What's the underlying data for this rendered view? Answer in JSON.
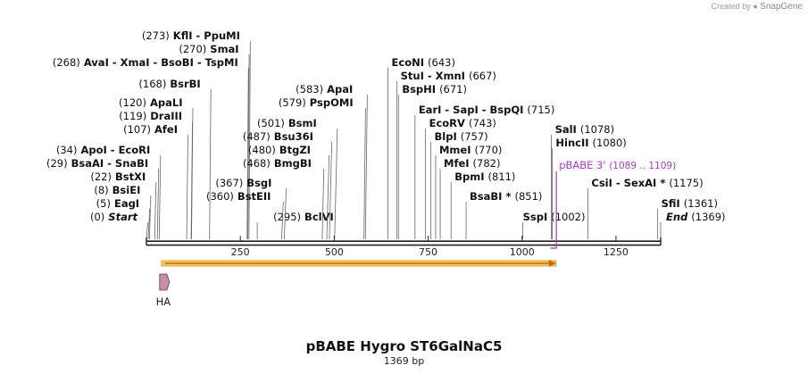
{
  "app": {
    "watermark_prefix": "Created by",
    "watermark_brand": "SnapGene"
  },
  "map": {
    "title": "pBABE Hygro ST6GalNaC5",
    "length_label": "1369 bp",
    "length": 1369
  },
  "colors": {
    "axis": "#222222",
    "orf_fill": "#f6c667",
    "orf_stroke": "#e59a1a",
    "orf_arrow": "#c96e05",
    "feature_fill": "#c48fa9",
    "primer": "#a93cc9",
    "leader": "#666666"
  },
  "ticks": [
    {
      "pos": 250,
      "label": "250"
    },
    {
      "pos": 500,
      "label": "500"
    },
    {
      "pos": 750,
      "label": "750"
    },
    {
      "pos": 1000,
      "label": "1000"
    },
    {
      "pos": 1250,
      "label": "1250"
    }
  ],
  "sites": [
    {
      "pos": 273,
      "text": "(273)  KflI  - PpuMI"
    },
    {
      "pos": 270,
      "text": "(270)  SmaI"
    },
    {
      "pos": 268,
      "text": "(268)  AvaI  - XmaI  - BsoBI  - TspMI"
    },
    {
      "pos": 168,
      "text": "(168)  BsrBI"
    },
    {
      "pos": 120,
      "text": "(120)  ApaLI"
    },
    {
      "pos": 119,
      "text": "(119)  DraIII"
    },
    {
      "pos": 107,
      "text": "(107)  AfeI"
    },
    {
      "pos": 34,
      "text": "(34)  ApoI  - EcoRI"
    },
    {
      "pos": 29,
      "text": "(29)  BsaAI  - SnaBI"
    },
    {
      "pos": 22,
      "text": "(22)  BstXI"
    },
    {
      "pos": 8,
      "text": "(8)  BsiEI"
    },
    {
      "pos": 5,
      "text": "(5)  EagI"
    },
    {
      "pos": 0,
      "text": "(0)  Start"
    },
    {
      "pos": 295,
      "text": "(295)  BclVI"
    },
    {
      "pos": 360,
      "text": "(360)  BstEII"
    },
    {
      "pos": 367,
      "text": "(367)  BsgI"
    },
    {
      "pos": 468,
      "text": "(468)  BmgBI"
    },
    {
      "pos": 480,
      "text": "(480)  BtgZI"
    },
    {
      "pos": 487,
      "text": "(487)  Bsu36I"
    },
    {
      "pos": 501,
      "text": "(501)  BsmI"
    },
    {
      "pos": 579,
      "text": "(579)  PspOMI"
    },
    {
      "pos": 583,
      "text": "(583)  ApaI"
    },
    {
      "pos": 643,
      "text": "EcoNI  (643)"
    },
    {
      "pos": 667,
      "text": "StuI  - XmnI  (667)"
    },
    {
      "pos": 671,
      "text": "BspHI  (671)"
    },
    {
      "pos": 715,
      "text": "EarI  - SapI  - BspQI  (715)"
    },
    {
      "pos": 743,
      "text": "EcoRV  (743)"
    },
    {
      "pos": 757,
      "text": "BlpI  (757)"
    },
    {
      "pos": 770,
      "text": "MmeI  (770)"
    },
    {
      "pos": 782,
      "text": "MfeI  (782)"
    },
    {
      "pos": 811,
      "text": "BpmI  (811)"
    },
    {
      "pos": 851,
      "text": "BsaBI *  (851)"
    },
    {
      "pos": 1002,
      "text": "SspI  (1002)"
    },
    {
      "pos": 1078,
      "text": "SalI  (1078)"
    },
    {
      "pos": 1080,
      "text": "HincII  (1080)"
    },
    {
      "pos": 1175,
      "text": "CsiI  - SexAI *  (1175)"
    },
    {
      "pos": 1361,
      "text": "SfiI  (1361)"
    },
    {
      "pos": 1369,
      "text": "End  (1369)"
    }
  ],
  "primer": {
    "name": "pBABE 3'",
    "range": "(1089 .. 1109)",
    "start": 1089,
    "end": 1109
  },
  "orf": {
    "start": 40,
    "end": 1090
  },
  "feature": {
    "name": "HA",
    "start": 40,
    "end": 67
  }
}
